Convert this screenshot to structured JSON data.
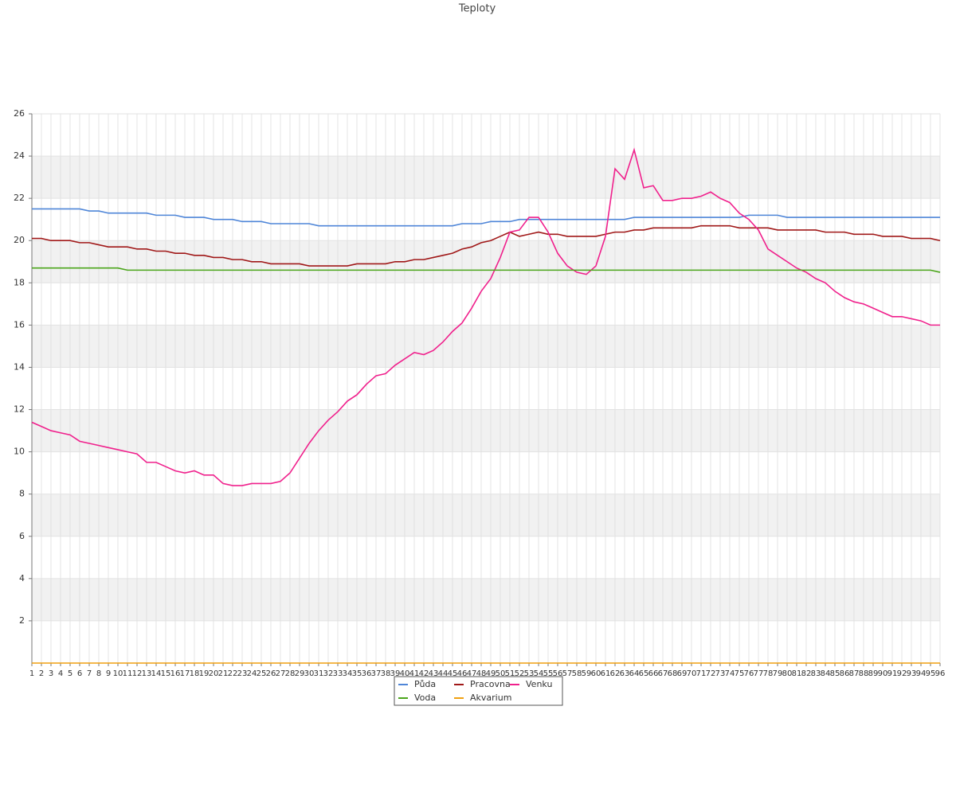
{
  "chart_data": {
    "type": "line",
    "title": "Teploty",
    "categories": [
      1,
      2,
      3,
      4,
      5,
      6,
      7,
      8,
      9,
      10,
      11,
      12,
      13,
      14,
      15,
      16,
      17,
      18,
      19,
      20,
      21,
      22,
      23,
      24,
      25,
      26,
      27,
      28,
      29,
      30,
      31,
      32,
      33,
      34,
      35,
      36,
      37,
      38,
      39,
      40,
      41,
      42,
      43,
      44,
      45,
      46,
      47,
      48,
      49,
      50,
      51,
      52,
      53,
      54,
      55,
      56,
      57,
      58,
      59,
      60,
      61,
      62,
      63,
      64,
      65,
      66,
      67,
      68,
      69,
      70,
      71,
      72,
      73,
      74,
      75,
      76,
      77,
      78,
      79,
      80,
      81,
      82,
      83,
      84,
      85,
      86,
      87,
      88,
      89,
      90,
      91,
      92,
      93,
      94,
      95,
      96
    ],
    "ylim": [
      0,
      26
    ],
    "yticks": [
      2,
      4,
      6,
      8,
      10,
      12,
      14,
      16,
      18,
      20,
      22,
      24,
      26
    ],
    "grid": true,
    "legend": "bottom",
    "series": [
      {
        "name": "Půda",
        "color": "#4f86d8",
        "values": [
          21.5,
          21.5,
          21.5,
          21.5,
          21.5,
          21.5,
          21.4,
          21.4,
          21.3,
          21.3,
          21.3,
          21.3,
          21.3,
          21.2,
          21.2,
          21.2,
          21.1,
          21.1,
          21.1,
          21.0,
          21.0,
          21.0,
          20.9,
          20.9,
          20.9,
          20.8,
          20.8,
          20.8,
          20.8,
          20.8,
          20.7,
          20.7,
          20.7,
          20.7,
          20.7,
          20.7,
          20.7,
          20.7,
          20.7,
          20.7,
          20.7,
          20.7,
          20.7,
          20.7,
          20.7,
          20.8,
          20.8,
          20.8,
          20.9,
          20.9,
          20.9,
          21.0,
          21.0,
          21.0,
          21.0,
          21.0,
          21.0,
          21.0,
          21.0,
          21.0,
          21.0,
          21.0,
          21.0,
          21.1,
          21.1,
          21.1,
          21.1,
          21.1,
          21.1,
          21.1,
          21.1,
          21.1,
          21.1,
          21.1,
          21.1,
          21.2,
          21.2,
          21.2,
          21.2,
          21.1,
          21.1,
          21.1,
          21.1,
          21.1,
          21.1,
          21.1,
          21.1,
          21.1,
          21.1,
          21.1,
          21.1,
          21.1,
          21.1,
          21.1,
          21.1,
          21.1
        ]
      },
      {
        "name": "Pracovna",
        "color": "#a01818",
        "values": [
          20.1,
          20.1,
          20.0,
          20.0,
          20.0,
          19.9,
          19.9,
          19.8,
          19.7,
          19.7,
          19.7,
          19.6,
          19.6,
          19.5,
          19.5,
          19.4,
          19.4,
          19.3,
          19.3,
          19.2,
          19.2,
          19.1,
          19.1,
          19.0,
          19.0,
          18.9,
          18.9,
          18.9,
          18.9,
          18.8,
          18.8,
          18.8,
          18.8,
          18.8,
          18.9,
          18.9,
          18.9,
          18.9,
          19.0,
          19.0,
          19.1,
          19.1,
          19.2,
          19.3,
          19.4,
          19.6,
          19.7,
          19.9,
          20.0,
          20.2,
          20.4,
          20.2,
          20.3,
          20.4,
          20.3,
          20.3,
          20.2,
          20.2,
          20.2,
          20.2,
          20.3,
          20.4,
          20.4,
          20.5,
          20.5,
          20.6,
          20.6,
          20.6,
          20.6,
          20.6,
          20.7,
          20.7,
          20.7,
          20.7,
          20.6,
          20.6,
          20.6,
          20.6,
          20.5,
          20.5,
          20.5,
          20.5,
          20.5,
          20.4,
          20.4,
          20.4,
          20.3,
          20.3,
          20.3,
          20.2,
          20.2,
          20.2,
          20.1,
          20.1,
          20.1,
          20.0
        ]
      },
      {
        "name": "Venku",
        "color": "#f0208c",
        "values": [
          11.4,
          11.2,
          11.0,
          10.9,
          10.8,
          10.5,
          10.4,
          10.3,
          10.2,
          10.1,
          10.0,
          9.9,
          9.5,
          9.5,
          9.3,
          9.1,
          9.0,
          9.1,
          8.9,
          8.9,
          8.5,
          8.4,
          8.4,
          8.5,
          8.5,
          8.5,
          8.6,
          9.0,
          9.7,
          10.4,
          11.0,
          11.5,
          11.9,
          12.4,
          12.7,
          13.2,
          13.6,
          13.7,
          14.1,
          14.4,
          14.7,
          14.6,
          14.8,
          15.2,
          15.7,
          16.1,
          16.8,
          17.6,
          18.2,
          19.2,
          20.4,
          20.5,
          21.1,
          21.1,
          20.4,
          19.4,
          18.8,
          18.5,
          18.4,
          18.8,
          20.2,
          23.4,
          22.9,
          24.3,
          22.5,
          22.6,
          21.9,
          21.9,
          22.0,
          22.0,
          22.1,
          22.3,
          22.0,
          21.8,
          21.3,
          21.0,
          20.5,
          19.6,
          19.3,
          19.0,
          18.7,
          18.5,
          18.2,
          18.0,
          17.6,
          17.3,
          17.1,
          17.0,
          16.8,
          16.6,
          16.4,
          16.4,
          16.3,
          16.2,
          16.0,
          16.0
        ]
      },
      {
        "name": "Voda",
        "color": "#4aa51a",
        "values": [
          18.7,
          18.7,
          18.7,
          18.7,
          18.7,
          18.7,
          18.7,
          18.7,
          18.7,
          18.7,
          18.6,
          18.6,
          18.6,
          18.6,
          18.6,
          18.6,
          18.6,
          18.6,
          18.6,
          18.6,
          18.6,
          18.6,
          18.6,
          18.6,
          18.6,
          18.6,
          18.6,
          18.6,
          18.6,
          18.6,
          18.6,
          18.6,
          18.6,
          18.6,
          18.6,
          18.6,
          18.6,
          18.6,
          18.6,
          18.6,
          18.6,
          18.6,
          18.6,
          18.6,
          18.6,
          18.6,
          18.6,
          18.6,
          18.6,
          18.6,
          18.6,
          18.6,
          18.6,
          18.6,
          18.6,
          18.6,
          18.6,
          18.6,
          18.6,
          18.6,
          18.6,
          18.6,
          18.6,
          18.6,
          18.6,
          18.6,
          18.6,
          18.6,
          18.6,
          18.6,
          18.6,
          18.6,
          18.6,
          18.6,
          18.6,
          18.6,
          18.6,
          18.6,
          18.6,
          18.6,
          18.6,
          18.6,
          18.6,
          18.6,
          18.6,
          18.6,
          18.6,
          18.6,
          18.6,
          18.6,
          18.6,
          18.6,
          18.6,
          18.6,
          18.6,
          18.5
        ]
      },
      {
        "name": "Akvarium",
        "color": "#f0a010",
        "values": [
          0,
          0,
          0,
          0,
          0,
          0,
          0,
          0,
          0,
          0,
          0,
          0,
          0,
          0,
          0,
          0,
          0,
          0,
          0,
          0,
          0,
          0,
          0,
          0,
          0,
          0,
          0,
          0,
          0,
          0,
          0,
          0,
          0,
          0,
          0,
          0,
          0,
          0,
          0,
          0,
          0,
          0,
          0,
          0,
          0,
          0,
          0,
          0,
          0,
          0,
          0,
          0,
          0,
          0,
          0,
          0,
          0,
          0,
          0,
          0,
          0,
          0,
          0,
          0,
          0,
          0,
          0,
          0,
          0,
          0,
          0,
          0,
          0,
          0,
          0,
          0,
          0,
          0,
          0,
          0,
          0,
          0,
          0,
          0,
          0,
          0,
          0,
          0,
          0,
          0,
          0,
          0,
          0,
          0,
          0,
          0
        ]
      }
    ]
  }
}
